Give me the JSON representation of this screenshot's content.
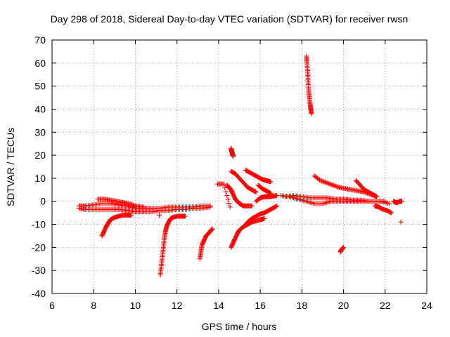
{
  "chart_data": {
    "type": "scatter",
    "title": "Day 298 of 2018, Sidereal Day-to-day VTEC variation (SDTVAR) for receiver rwsn",
    "xlabel": "GPS time / hours",
    "ylabel": "SDTVAR / TECUs",
    "xlim": [
      6,
      24
    ],
    "ylim": [
      -40,
      70
    ],
    "xticks": [
      6,
      8,
      10,
      12,
      14,
      16,
      18,
      20,
      22,
      24
    ],
    "yticks": [
      -40,
      -30,
      -20,
      -10,
      0,
      10,
      20,
      30,
      40,
      50,
      60,
      70
    ],
    "grid": true,
    "marker": "plus",
    "color": "#ff0000",
    "series": [
      {
        "name": "arc-main",
        "x": [
          7.3,
          7.6,
          8.0,
          8.4,
          8.8,
          9.2,
          9.6,
          10.0,
          10.4,
          10.8,
          11.2,
          11.6,
          12.0,
          12.4,
          12.8,
          13.2,
          13.6
        ],
        "y": [
          -2,
          -2,
          -1.5,
          -1,
          -1,
          -1.5,
          -2,
          -3,
          -3,
          -3,
          -3,
          -2.5,
          -2.5,
          -2.5,
          -2.5,
          -2,
          -2
        ]
      },
      {
        "name": "arc-main-lower",
        "x": [
          7.3,
          7.6,
          8.0,
          8.4,
          8.8,
          9.2,
          9.6,
          10.0,
          10.4,
          10.8,
          11.2,
          11.6,
          12.0,
          12.4,
          12.8,
          13.2,
          13.6
        ],
        "y": [
          -3,
          -3.5,
          -3.5,
          -3.5,
          -3.5,
          -3.5,
          -4,
          -4.5,
          -4.5,
          -4.5,
          -4,
          -4,
          -3.5,
          -3.5,
          -3,
          -3,
          -2.5
        ]
      },
      {
        "name": "arc-upper-8-10",
        "x": [
          8.2,
          8.5,
          8.8,
          9.1,
          9.4,
          9.7,
          10.0,
          10.4
        ],
        "y": [
          1,
          1,
          0.5,
          0,
          -0.5,
          -1,
          -2,
          -2.5
        ]
      },
      {
        "name": "arc-8.4",
        "x": [
          8.4,
          8.5,
          8.6,
          8.7,
          8.8,
          9.0,
          9.2,
          9.4,
          9.6,
          9.8
        ],
        "y": [
          -15,
          -13,
          -11,
          -9.5,
          -8,
          -7,
          -6.5,
          -6,
          -6,
          -6
        ]
      },
      {
        "name": "arc-11.2",
        "x": [
          11.2,
          11.25,
          11.3,
          11.35,
          11.4,
          11.45,
          11.5,
          11.6,
          11.7,
          11.8,
          12.0,
          12.2,
          12.4
        ],
        "y": [
          -32,
          -28,
          -24,
          -20,
          -16,
          -13,
          -11,
          -9,
          -7.5,
          -7,
          -6.5,
          -6.5,
          -6.5
        ]
      },
      {
        "name": "point-11.1",
        "x": [
          11.15
        ],
        "y": [
          -6
        ]
      },
      {
        "name": "arc-13.1",
        "x": [
          13.1,
          13.15,
          13.2,
          13.3,
          13.4,
          13.5,
          13.6,
          13.7
        ],
        "y": [
          -25,
          -22,
          -19,
          -17,
          -15,
          -14,
          -13,
          -12
        ]
      },
      {
        "name": "points-14",
        "x": [
          13.95,
          14.25,
          14.55
        ],
        "y": [
          7.5,
          7.5,
          -2.5
        ]
      },
      {
        "name": "arc-14.6-spike",
        "x": [
          14.6,
          14.62,
          14.65,
          14.68,
          14.7
        ],
        "y": [
          23,
          22,
          21,
          20,
          19.5
        ]
      },
      {
        "name": "arc-14.4",
        "x": [
          14.4,
          14.5,
          14.6,
          14.7,
          14.8,
          14.9,
          15.0,
          15.2,
          15.4,
          15.6
        ],
        "y": [
          7,
          6,
          5,
          3,
          1,
          0,
          -1,
          -2,
          -2,
          -2
        ]
      },
      {
        "name": "arc-14.6-up",
        "x": [
          14.6,
          14.8,
          15.0,
          15.2,
          15.4,
          15.6,
          15.8
        ],
        "y": [
          13,
          12,
          10,
          8,
          6,
          5,
          4
        ]
      },
      {
        "name": "arc-14.6-low",
        "x": [
          14.6,
          14.7,
          14.8,
          14.9,
          15.0,
          15.2,
          15.4,
          15.6,
          15.8,
          16.0,
          16.2
        ],
        "y": [
          -20,
          -18,
          -16,
          -14,
          -12.5,
          -11,
          -10,
          -9,
          -8.5,
          -8,
          -7.5
        ]
      },
      {
        "name": "arc-15.2-low",
        "x": [
          15.2,
          15.4,
          15.6,
          15.8,
          16.0,
          16.2,
          16.4,
          16.6,
          16.8
        ],
        "y": [
          -11,
          -9,
          -7.5,
          -6.5,
          -5.5,
          -5,
          -4,
          -3,
          -2
        ]
      },
      {
        "name": "arc-15.3-high",
        "x": [
          15.3,
          15.5,
          15.7,
          15.9,
          16.1,
          16.3,
          16.5
        ],
        "y": [
          13.5,
          12.5,
          11.5,
          10.5,
          9.5,
          9,
          8.5
        ]
      },
      {
        "name": "arc-15.8",
        "x": [
          15.8,
          16.0,
          16.2,
          16.4,
          16.6,
          16.8
        ],
        "y": [
          0,
          1.5,
          2,
          2,
          2.2,
          2.5
        ]
      },
      {
        "name": "arc-16.0",
        "x": [
          15.9,
          16.1,
          16.3,
          16.5
        ],
        "y": [
          7,
          5.5,
          4.5,
          3.5
        ]
      },
      {
        "name": "arc-17-20",
        "x": [
          17.0,
          17.4,
          17.8,
          18.2,
          18.6,
          19.0,
          19.4,
          19.8,
          20.2,
          20.6,
          21.0,
          21.4,
          21.8,
          22.2
        ],
        "y": [
          2.5,
          2,
          1,
          0,
          -1,
          -1,
          0,
          0,
          0,
          0,
          0,
          0,
          0,
          -1
        ]
      },
      {
        "name": "arc-17-20-upper",
        "x": [
          17.2,
          17.6,
          18.0,
          18.4,
          18.8,
          19.2,
          19.6,
          20.0,
          20.4,
          20.8,
          21.2,
          21.6,
          22.0
        ],
        "y": [
          2,
          2.5,
          2,
          1.5,
          1.5,
          1.5,
          1,
          1,
          0.5,
          0.5,
          0,
          0,
          0
        ]
      },
      {
        "name": "arc-18.2-spike",
        "x": [
          18.22,
          18.25,
          18.28,
          18.3,
          18.33,
          18.36,
          18.4,
          18.43,
          18.46
        ],
        "y": [
          63,
          60,
          56,
          52,
          48,
          45,
          42,
          40,
          38
        ]
      },
      {
        "name": "arc-18.6",
        "x": [
          18.6,
          18.9,
          19.2,
          19.5,
          19.8,
          20.1,
          20.4,
          20.7,
          21.0,
          21.3,
          21.6
        ],
        "y": [
          11,
          9,
          8,
          7,
          6,
          5.5,
          5,
          4.5,
          4,
          3,
          2
        ]
      },
      {
        "name": "arc-20.6",
        "x": [
          20.6,
          20.8,
          21.0,
          21.2,
          21.4,
          21.6
        ],
        "y": [
          9,
          7,
          5,
          4,
          3,
          2
        ]
      },
      {
        "name": "arc-19.9",
        "x": [
          19.85,
          19.9,
          19.95,
          20.0
        ],
        "y": [
          -22,
          -21,
          -20.5,
          -20
        ]
      },
      {
        "name": "arc-21.5-low",
        "x": [
          21.5,
          21.7,
          21.9,
          22.1,
          22.3
        ],
        "y": [
          -2,
          -2.5,
          -3.5,
          -4,
          -5
        ]
      },
      {
        "name": "arc-22.6",
        "x": [
          22.4,
          22.5,
          22.6,
          22.7,
          22.8
        ],
        "y": [
          0,
          -0.5,
          -0.5,
          0,
          0
        ]
      },
      {
        "name": "point-22.7",
        "x": [
          22.75
        ],
        "y": [
          -9
        ]
      }
    ]
  }
}
